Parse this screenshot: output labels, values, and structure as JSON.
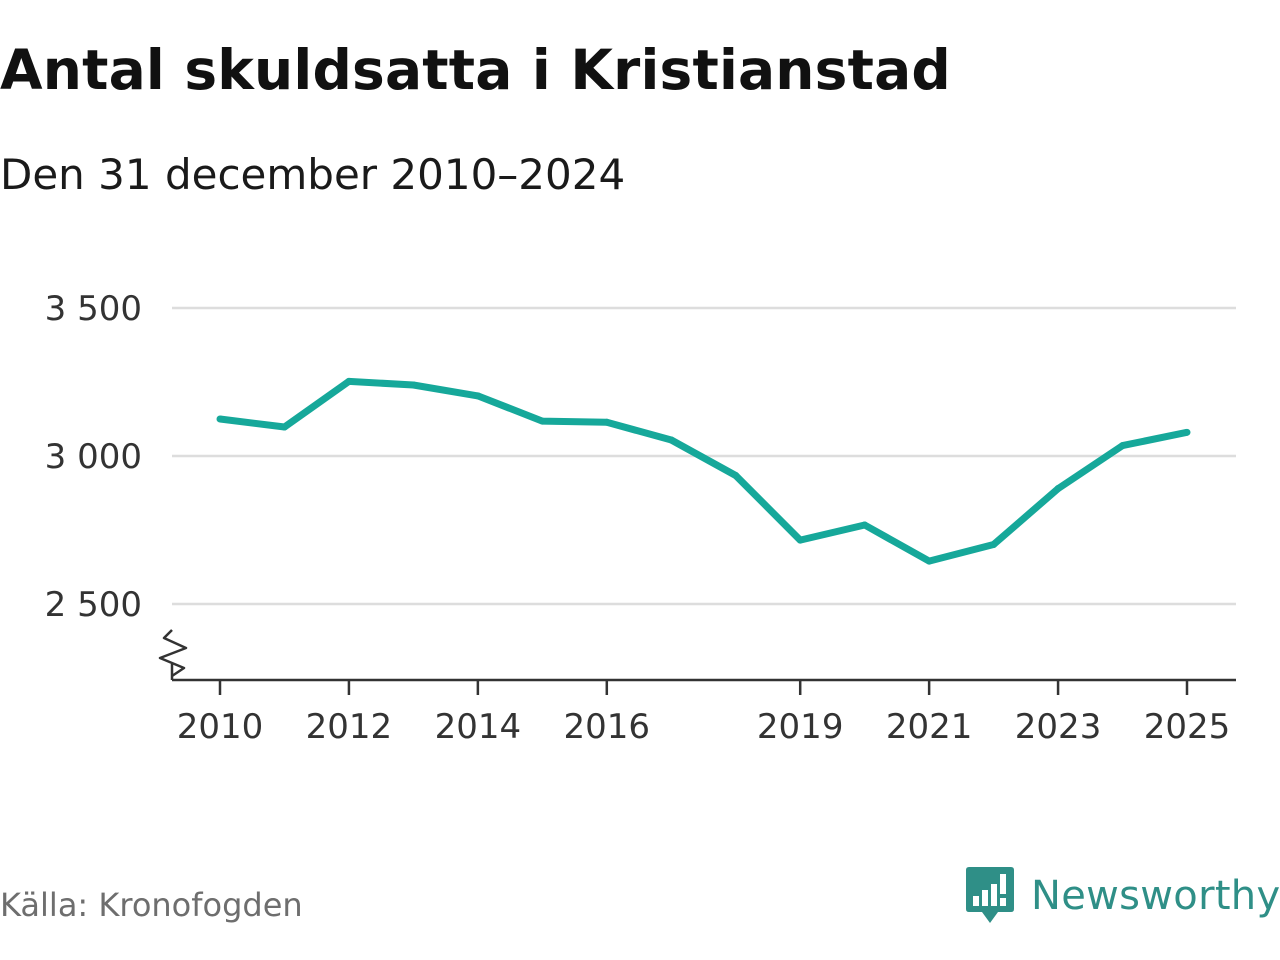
{
  "header": {
    "title": "Antal skuldsatta i Kristianstad",
    "subtitle": "Den 31 december 2010–2024"
  },
  "footer": {
    "source": "Källa: Kronofogden",
    "brand": "Newsworthy"
  },
  "colors": {
    "line": "#16a89a",
    "grid": "#dddddd",
    "axis": "#333333",
    "brand": "#2f8f87"
  },
  "chart_data": {
    "type": "line",
    "title": "Antal skuldsatta i Kristianstad",
    "subtitle": "Den 31 december 2010–2024",
    "xlabel": "",
    "ylabel": "",
    "xlim": [
      2010,
      2025
    ],
    "ylim": [
      2500,
      3500
    ],
    "axis_break": true,
    "grid": true,
    "y_ticks": [
      2500,
      3000,
      3500
    ],
    "y_tick_labels": [
      "2 500",
      "3 000",
      "3 500"
    ],
    "x_ticks": [
      2010,
      2012,
      2014,
      2016,
      2019,
      2021,
      2023,
      2025
    ],
    "x_tick_labels": [
      "2010",
      "2012",
      "2014",
      "2016",
      "2019",
      "2021",
      "2023",
      "2025"
    ],
    "series": [
      {
        "name": "Antal skuldsatta",
        "x": [
          2010,
          2011,
          2012,
          2013,
          2014,
          2015,
          2016,
          2017,
          2018,
          2019,
          2020,
          2021,
          2022,
          2023,
          2024,
          2025
        ],
        "values": [
          3125,
          3098,
          3252,
          3240,
          3203,
          3118,
          3114,
          3054,
          2934,
          2716,
          2767,
          2645,
          2701,
          2890,
          3035,
          3080
        ]
      }
    ],
    "source": "Källa: Kronofogden"
  }
}
